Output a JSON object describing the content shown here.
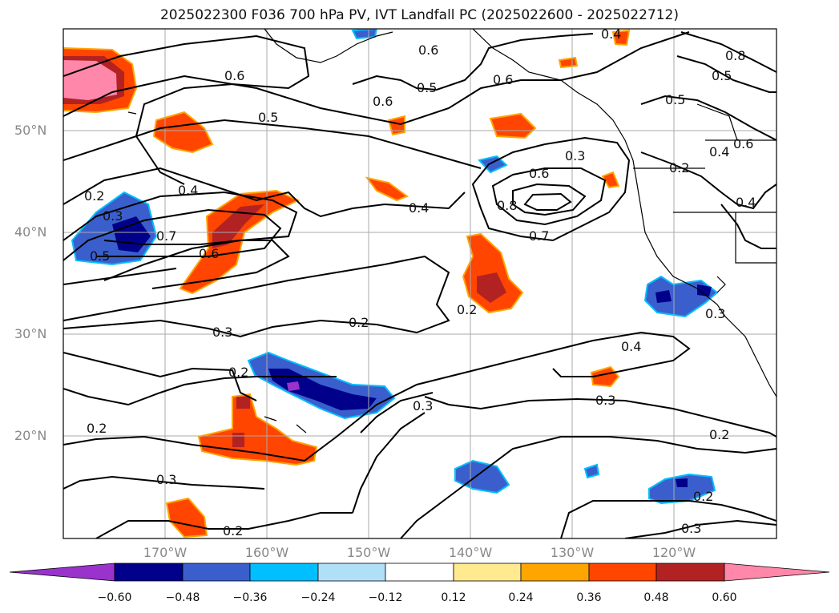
{
  "title": "2025022300 F036 700 hPa PV, IVT Landfall PC (2025022600 - 2025022712)",
  "lat_labels": [
    "50°N",
    "40°N",
    "30°N",
    "20°N"
  ],
  "lon_labels": [
    "170°W",
    "160°W",
    "150°W",
    "140°W",
    "130°W",
    "120°W"
  ],
  "colorbar": {
    "labels": [
      "−0.60",
      "−0.48",
      "−0.36",
      "−0.24",
      "−0.12",
      "0.12",
      "0.24",
      "0.36",
      "0.48",
      "0.60"
    ],
    "colors": [
      "#9933cc",
      "#00008b",
      "#3a5fcd",
      "#00bfff",
      "#b0e0f8",
      "#ffffff",
      "#ffea90",
      "#ffa500",
      "#ff4500",
      "#b22222",
      "#ff88aa"
    ]
  },
  "contour_labels": [
    "0.6",
    "0.5",
    "0.6",
    "0.5",
    "0.6",
    "0.6",
    "0.4",
    "0.8",
    "0.5",
    "0.5",
    "0.4",
    "0.6",
    "0.3",
    "0.2",
    "0.6",
    "0.4",
    "0.2",
    "0.3",
    "0.4",
    "0.4",
    "0.8",
    "0.7",
    "0.5",
    "0.7",
    "0.6",
    "0.2",
    "0.2",
    "0.3",
    "0.3",
    "0.2",
    "0.4",
    "0.3",
    "0.3",
    "0.2",
    "0.2",
    "0.3",
    "0.2",
    "0.2",
    "0.3"
  ]
}
